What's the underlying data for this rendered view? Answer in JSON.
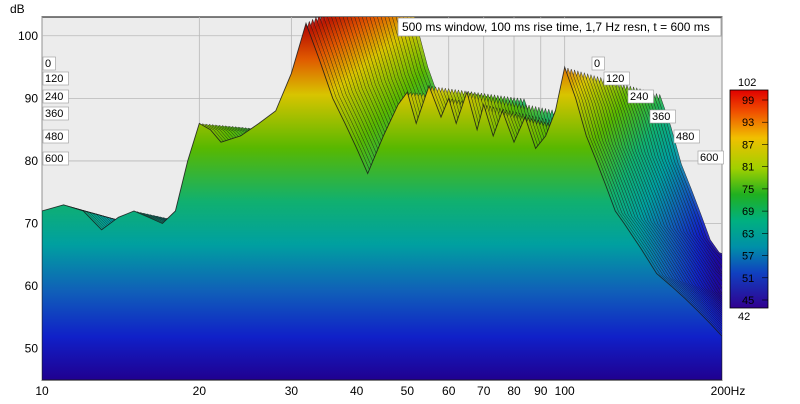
{
  "chart_data": {
    "type": "area",
    "title": "500 ms window, 100 ms rise time,  1,7 Hz resn, t = 600 ms",
    "y_unit": "dB",
    "x_unit": "Hz",
    "ylim": [
      45,
      103
    ],
    "xlim": [
      10,
      200
    ],
    "x_scale": "log",
    "grid": true,
    "y_ticks": [
      50,
      60,
      70,
      80,
      90,
      100
    ],
    "x_ticks": [
      {
        "value": 10,
        "label": "10"
      },
      {
        "value": 20,
        "label": "20"
      },
      {
        "value": 30,
        "label": "30"
      },
      {
        "value": 40,
        "label": "40"
      },
      {
        "value": 50,
        "label": "50"
      },
      {
        "value": 60,
        "label": "60"
      },
      {
        "value": 70,
        "label": "70"
      },
      {
        "value": 80,
        "label": "80"
      },
      {
        "value": 90,
        "label": "90"
      },
      {
        "value": 100,
        "label": "100"
      },
      {
        "value": 200,
        "label": "200Hz"
      }
    ],
    "time_slices_ms": [
      "0",
      "120",
      "240",
      "360",
      "480",
      "600"
    ],
    "colorbar": {
      "max_label": "102",
      "min_label": "42",
      "ticks": [
        "99",
        "93",
        "87",
        "81",
        "75",
        "69",
        "63",
        "57",
        "51",
        "45"
      ]
    },
    "series": [
      {
        "name": "0",
        "x": [
          10,
          11,
          12,
          13,
          14,
          15,
          16,
          17,
          18,
          19,
          20,
          21,
          22,
          24,
          26,
          28,
          30,
          32,
          34,
          36,
          38,
          40,
          42,
          45,
          48,
          50,
          52,
          55,
          58,
          60,
          62,
          65,
          68,
          70,
          73,
          76,
          80,
          84,
          88,
          92,
          96,
          100,
          105,
          110,
          115,
          120,
          125,
          130,
          140,
          150,
          160,
          170,
          180,
          190,
          200
        ],
        "y": [
          72,
          73,
          72,
          69,
          71,
          72,
          71,
          70,
          72,
          80,
          86,
          85,
          83,
          84,
          86,
          88,
          94,
          102,
          96,
          90,
          86,
          82,
          78,
          84,
          89,
          91,
          86,
          92,
          87,
          90,
          86,
          91,
          85,
          89,
          84,
          88,
          83,
          87,
          82,
          84,
          88,
          95,
          90,
          84,
          80,
          76,
          72,
          70,
          66,
          62,
          60,
          58,
          56,
          54,
          52
        ]
      }
    ]
  }
}
